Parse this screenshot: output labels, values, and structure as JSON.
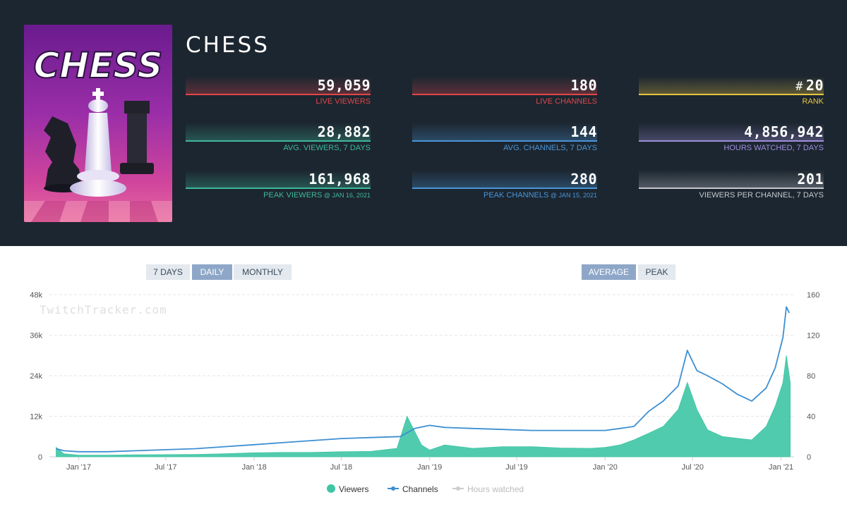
{
  "game": {
    "title": "CHESS",
    "cover_text": "CHESS"
  },
  "stats": [
    {
      "value": "59,059",
      "label": "LIVE VIEWERS",
      "color": "#e0464a"
    },
    {
      "value": "180",
      "label": "LIVE CHANNELS",
      "color": "#e0464a"
    },
    {
      "value": "20",
      "prefix": "#",
      "label": "RANK",
      "color": "#e8c640"
    },
    {
      "value": "28,882",
      "label": "AVG. VIEWERS, 7 DAYS",
      "color": "#3fb89a"
    },
    {
      "value": "144",
      "label": "AVG. CHANNELS, 7 DAYS",
      "color": "#4a95d8"
    },
    {
      "value": "4,856,942",
      "label": "HOURS WATCHED, 7 DAYS",
      "color": "#9f8fdc"
    },
    {
      "value": "161,968",
      "label": "PEAK VIEWERS",
      "label_small": "@ JAN 16, 2021",
      "color": "#3fb89a"
    },
    {
      "value": "280",
      "label": "PEAK CHANNELS",
      "label_small": "@ JAN 15, 2021",
      "color": "#4a95d8"
    },
    {
      "value": "201",
      "label": "VIEWERS PER CHANNEL, 7 DAYS",
      "color": "#c4c8cc"
    }
  ],
  "period_buttons": [
    "7 DAYS",
    "DAILY",
    "MONTHLY"
  ],
  "period_active": "DAILY",
  "mode_buttons": [
    "AVERAGE",
    "PEAK"
  ],
  "mode_active": "AVERAGE",
  "legend": [
    {
      "name": "Viewers",
      "color": "#3ec5a4",
      "active": true
    },
    {
      "name": "Channels",
      "color": "#3d8fd1",
      "active": true
    },
    {
      "name": "Hours watched",
      "color": "#cccccc",
      "active": false
    }
  ],
  "chart_data": {
    "type": "line",
    "watermark": "TwitchTracker.com",
    "x_tick_labels": [
      "Jan '17",
      "Jul '17",
      "Jan '18",
      "Jul '18",
      "Jan '19",
      "Jul '19",
      "Jan '20",
      "Jul '20",
      "Jan '21"
    ],
    "y_left": {
      "ticks": [
        "0",
        "12k",
        "24k",
        "36k",
        "48k"
      ],
      "range": [
        0,
        48000
      ]
    },
    "y_right": {
      "ticks": [
        "0",
        "40",
        "80",
        "120",
        "160"
      ],
      "range": [
        0,
        160
      ]
    },
    "grid": true,
    "legend_position": "bottom",
    "series": [
      {
        "name": "Viewers",
        "type": "area",
        "color": "#3ec5a4",
        "axis": "left",
        "x": [
          "2016-11-15",
          "2016-12-01",
          "2017-01-01",
          "2017-03-01",
          "2017-05-01",
          "2017-07-01",
          "2017-09-01",
          "2017-11-01",
          "2018-01-01",
          "2018-03-01",
          "2018-05-01",
          "2018-07-01",
          "2018-09-01",
          "2018-10-25",
          "2018-11-15",
          "2018-12-15",
          "2019-01-01",
          "2019-02-01",
          "2019-04-01",
          "2019-06-01",
          "2019-08-01",
          "2019-10-01",
          "2019-12-01",
          "2020-01-01",
          "2020-02-01",
          "2020-03-01",
          "2020-04-01",
          "2020-05-01",
          "2020-06-01",
          "2020-06-20",
          "2020-07-10",
          "2020-08-01",
          "2020-09-01",
          "2020-10-01",
          "2020-11-01",
          "2020-12-01",
          "2020-12-20",
          "2021-01-05",
          "2021-01-12",
          "2021-01-20"
        ],
        "values": [
          2800,
          900,
          500,
          500,
          600,
          650,
          700,
          900,
          1200,
          1300,
          1300,
          1500,
          1600,
          2500,
          12000,
          3500,
          2000,
          3500,
          2500,
          3000,
          3000,
          2600,
          2500,
          2800,
          3500,
          5000,
          7000,
          9000,
          14000,
          22000,
          14000,
          8000,
          6000,
          5500,
          5000,
          9000,
          15000,
          22000,
          30000,
          22000
        ]
      },
      {
        "name": "Channels",
        "type": "line",
        "color": "#3d8fd1",
        "axis": "right",
        "x": [
          "2016-11-15",
          "2016-12-01",
          "2017-01-01",
          "2017-03-01",
          "2017-05-01",
          "2017-07-01",
          "2017-09-01",
          "2017-11-01",
          "2018-01-01",
          "2018-03-01",
          "2018-05-01",
          "2018-07-01",
          "2018-09-01",
          "2018-11-01",
          "2018-12-01",
          "2019-01-01",
          "2019-02-01",
          "2019-04-01",
          "2019-06-01",
          "2019-08-01",
          "2019-10-01",
          "2019-12-01",
          "2020-01-01",
          "2020-02-01",
          "2020-03-01",
          "2020-04-01",
          "2020-05-01",
          "2020-06-01",
          "2020-06-20",
          "2020-07-10",
          "2020-08-01",
          "2020-09-01",
          "2020-10-01",
          "2020-11-01",
          "2020-12-01",
          "2020-12-20",
          "2021-01-05",
          "2021-01-12",
          "2021-01-18"
        ],
        "values": [
          8,
          6,
          5,
          5,
          6,
          7,
          8,
          10,
          12,
          14,
          16,
          18,
          19,
          20,
          28,
          31,
          29,
          28,
          27,
          26,
          26,
          26,
          26,
          28,
          30,
          45,
          55,
          70,
          105,
          85,
          80,
          72,
          62,
          55,
          68,
          88,
          118,
          148,
          142
        ]
      },
      {
        "name": "Hours watched",
        "type": "line",
        "color": "#cccccc",
        "axis": "left",
        "hidden": true,
        "x": [],
        "values": []
      }
    ]
  }
}
